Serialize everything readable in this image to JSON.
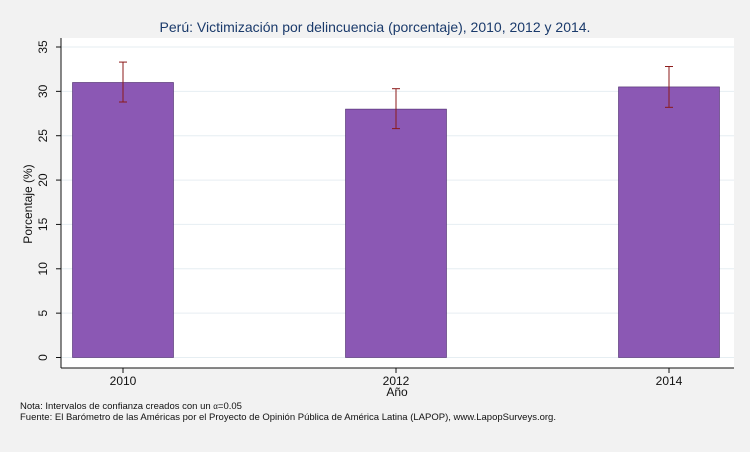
{
  "chart_data": {
    "type": "bar",
    "title": "Perú: Victimización por delincuencia (porcentaje), 2010, 2012 y 2014.",
    "xlabel": "Año",
    "ylabel": "Porcentaje (%)",
    "categories": [
      "2010",
      "2012",
      "2014"
    ],
    "values": [
      31.0,
      28.0,
      30.5
    ],
    "ci_low": [
      28.8,
      25.8,
      28.2
    ],
    "ci_high": [
      33.3,
      30.3,
      32.8
    ],
    "ylim": [
      0,
      36
    ],
    "yticks": [
      0,
      5,
      10,
      15,
      20,
      25,
      30,
      35
    ],
    "grid": true,
    "bar_color": "#8b58b4",
    "errorbar_color": "#8b1a1a"
  },
  "notes": {
    "nota_prefix": "Nota: Intervalos de confianza creados con un ",
    "alpha_symbol": "α",
    "nota_suffix": "=0.05",
    "fuente": "Fuente: El Barómetro de las Américas por el Proyecto de Opinión Pública de América Latina (LAPOP), www.LapopSurveys.org."
  }
}
